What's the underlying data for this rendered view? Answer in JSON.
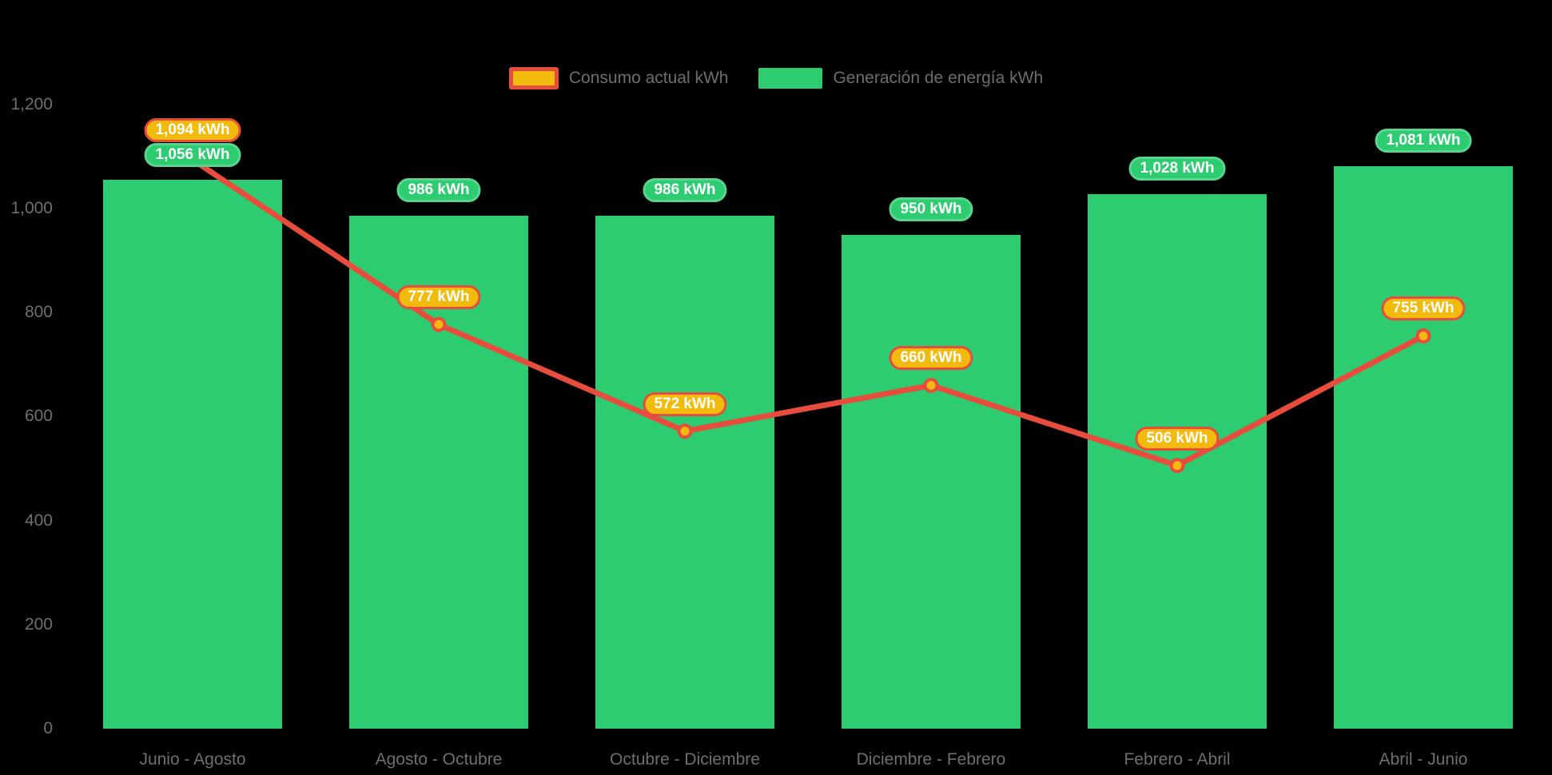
{
  "background": "#000000",
  "chart_data": {
    "type": "combo",
    "categories": [
      "Junio - Agosto",
      "Agosto - Octubre",
      "Octubre - Diciembre",
      "Diciembre - Febrero",
      "Febrero - Abril",
      "Abril - Junio"
    ],
    "series": [
      {
        "name": "Consumo actual kWh",
        "type": "line",
        "color": "#E74C3C",
        "point_fill": "#F1BA0C",
        "label_fill": "#F1BA0C",
        "label_border": "#E74C3C",
        "values": [
          1094,
          777,
          572,
          660,
          506,
          755
        ],
        "labels": [
          "1,094 kWh",
          "777 kWh",
          "572 kWh",
          "660 kWh",
          "506 kWh",
          "755 kWh"
        ]
      },
      {
        "name": "Generación de energía kWh",
        "type": "bar",
        "color": "#2ECC71",
        "label_fill": "#2ECC71",
        "label_border": "#58D68D",
        "values": [
          1056,
          986,
          986,
          950,
          1028,
          1081
        ],
        "labels": [
          "1,056 kWh",
          "986 kWh",
          "986 kWh",
          "950 kWh",
          "1,028 kWh",
          "1,081 kWh"
        ]
      }
    ],
    "y_axis": {
      "tick_labels": [
        "0",
        "200",
        "400",
        "600",
        "800",
        "1,000",
        "1,200"
      ],
      "tick_values": [
        0,
        200,
        400,
        600,
        800,
        1000,
        1200
      ],
      "ylim": [
        0,
        1200
      ]
    },
    "grid": false,
    "legend_position": "top",
    "text_color": "#6E6E6E"
  }
}
